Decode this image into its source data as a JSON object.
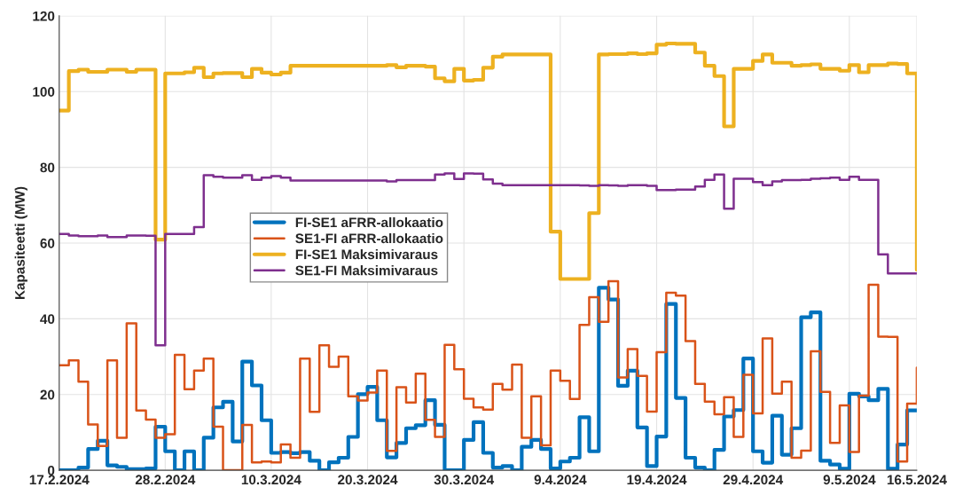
{
  "chart_data": {
    "type": "step",
    "ylabel": "Kapasiteetti (MW)",
    "x": [
      "2024-02-17",
      "2024-02-18",
      "2024-02-19",
      "2024-02-20",
      "2024-02-21",
      "2024-02-22",
      "2024-02-23",
      "2024-02-24",
      "2024-02-25",
      "2024-02-26",
      "2024-02-27",
      "2024-02-28",
      "2024-02-29",
      "2024-03-01",
      "2024-03-02",
      "2024-03-03",
      "2024-03-04",
      "2024-03-05",
      "2024-03-06",
      "2024-03-07",
      "2024-03-08",
      "2024-03-09",
      "2024-03-10",
      "2024-03-11",
      "2024-03-12",
      "2024-03-13",
      "2024-03-14",
      "2024-03-15",
      "2024-03-16",
      "2024-03-17",
      "2024-03-18",
      "2024-03-19",
      "2024-03-20",
      "2024-03-21",
      "2024-03-22",
      "2024-03-23",
      "2024-03-24",
      "2024-03-25",
      "2024-03-26",
      "2024-03-27",
      "2024-03-28",
      "2024-03-29",
      "2024-03-30",
      "2024-03-31",
      "2024-04-01",
      "2024-04-02",
      "2024-04-03",
      "2024-04-04",
      "2024-04-05",
      "2024-04-06",
      "2024-04-07",
      "2024-04-08",
      "2024-04-09",
      "2024-04-10",
      "2024-04-11",
      "2024-04-12",
      "2024-04-13",
      "2024-04-14",
      "2024-04-15",
      "2024-04-16",
      "2024-04-17",
      "2024-04-18",
      "2024-04-19",
      "2024-04-20",
      "2024-04-21",
      "2024-04-22",
      "2024-04-23",
      "2024-04-24",
      "2024-04-25",
      "2024-04-26",
      "2024-04-27",
      "2024-04-28",
      "2024-04-29",
      "2024-04-30",
      "2024-05-01",
      "2024-05-02",
      "2024-05-03",
      "2024-05-04",
      "2024-05-05",
      "2024-05-06",
      "2024-05-07",
      "2024-05-08",
      "2024-05-09",
      "2024-05-10",
      "2024-05-11",
      "2024-05-12",
      "2024-05-13",
      "2024-05-14",
      "2024-05-15",
      "2024-05-16"
    ],
    "series": [
      {
        "name": "FI-SE1 aFRR-allokaatio",
        "color": "#0072bd",
        "values": [
          0,
          0,
          0.7,
          5.6,
          7.8,
          1.3,
          0.9,
          0.3,
          0.3,
          0.5,
          11.5,
          5,
          0,
          5,
          0,
          8.6,
          16.6,
          18.1,
          7.6,
          28.7,
          22.4,
          13.2,
          4.6,
          4.8,
          4.5,
          4.8,
          2.5,
          0,
          2.1,
          3.3,
          8.8,
          20.1,
          22,
          13.2,
          3.4,
          7.2,
          11.1,
          11.9,
          18.5,
          12,
          0,
          0,
          8,
          12.7,
          4.6,
          0.7,
          1.1,
          0,
          6.2,
          8,
          5.6,
          0.5,
          2.3,
          3.3,
          14,
          5,
          48.2,
          45.1,
          22.3,
          26.3,
          11.3,
          1.1,
          8.9,
          43.9,
          19.1,
          3.3,
          0.7,
          0,
          5.4,
          14.2,
          15.9,
          29.5,
          5,
          2,
          14.4,
          4.1,
          11.1,
          40.4,
          41.7,
          2.5,
          1.5,
          0.4,
          20.2,
          19.5,
          18.5,
          21.5,
          0.4,
          6.8,
          15.8,
          15.8
        ]
      },
      {
        "name": "SE1-FI aFRR-allokaatio",
        "color": "#d95319",
        "values": [
          27.7,
          29,
          23.4,
          12.1,
          6.4,
          29,
          8.6,
          38.8,
          15.8,
          13.4,
          8.6,
          9.5,
          30.5,
          21.4,
          26.3,
          29.5,
          11.5,
          0,
          0,
          12,
          2.1,
          2.3,
          2.1,
          6.8,
          3.3,
          29.5,
          15.4,
          33,
          27.3,
          30,
          19.5,
          18.4,
          20.5,
          26.3,
          5.1,
          21.9,
          17.9,
          25.5,
          13.3,
          8.8,
          33.1,
          26.7,
          18.9,
          16.6,
          16,
          22.8,
          21.3,
          27.9,
          8.6,
          19.5,
          6.6,
          26.3,
          23.6,
          18.8,
          38.4,
          45.7,
          39.2,
          49.9,
          24.5,
          32,
          24.9,
          15.5,
          31.2,
          46.9,
          46.1,
          34.1,
          22.8,
          18.1,
          14.8,
          19.3,
          8.8,
          25.2,
          15,
          34.8,
          20.2,
          23.4,
          3.3,
          5.2,
          31.4,
          20.7,
          7.2,
          17.1,
          4.8,
          19.7,
          49,
          35.3,
          35.2,
          2.3,
          17.6,
          27.1
        ]
      },
      {
        "name": "FI-SE1 Maksimivaraus",
        "color": "#edb120",
        "values": [
          95,
          105.4,
          105.8,
          105.2,
          105.2,
          105.8,
          105.8,
          105.2,
          105.8,
          105.8,
          60.9,
          104.8,
          104.8,
          105.1,
          106.3,
          103.8,
          104.8,
          104.9,
          104.9,
          103.8,
          106,
          105,
          104.5,
          105,
          106.8,
          106.8,
          106.8,
          106.8,
          106.8,
          106.8,
          106.8,
          106.8,
          106.8,
          106.8,
          107,
          106.4,
          106.8,
          106.8,
          106.6,
          103.5,
          102.7,
          106,
          102.9,
          103.1,
          106.3,
          109.2,
          109.8,
          109.8,
          109.8,
          109.8,
          109.8,
          63,
          50.5,
          50.5,
          50.5,
          67.9,
          109.8,
          109.9,
          109.9,
          110.1,
          109.9,
          110.1,
          112.4,
          112.7,
          112.6,
          112.6,
          110.3,
          106.8,
          104.1,
          90.8,
          106,
          106,
          108.1,
          109.8,
          107.6,
          107.6,
          106.8,
          107,
          107.2,
          106,
          106,
          105.5,
          107,
          105.1,
          107,
          107,
          107.4,
          107.3,
          104.8,
          52.9
        ]
      },
      {
        "name": "SE1-FI Maksimivaraus",
        "color": "#7e2f8e",
        "values": [
          62.4,
          62,
          61.8,
          61.8,
          62,
          61.6,
          61.6,
          62,
          62,
          61.9,
          33,
          62.4,
          62.4,
          62.4,
          64.2,
          77.9,
          77.5,
          77.3,
          77.3,
          77.9,
          76.7,
          77.3,
          77.7,
          77.3,
          76.5,
          76.5,
          76.5,
          76.5,
          76.5,
          76.5,
          76.5,
          76.5,
          76.5,
          76.5,
          76.3,
          76.6,
          76.6,
          76.6,
          76.6,
          78.1,
          78.4,
          76.9,
          78.4,
          78.3,
          76.8,
          75.7,
          75.3,
          75.3,
          75.3,
          75.3,
          75.3,
          75.3,
          75.3,
          75.3,
          75.2,
          75.1,
          75.3,
          75.2,
          75.1,
          75.3,
          75.3,
          75.1,
          74,
          74,
          74.1,
          74.1,
          74.9,
          76.7,
          78.1,
          69.1,
          77,
          77,
          76.1,
          75.3,
          76.3,
          76.6,
          76.6,
          76.7,
          77,
          77.1,
          77.3,
          76.7,
          77.5,
          76.7,
          76.7,
          57,
          52,
          52,
          52,
          52
        ]
      }
    ],
    "xlim": [
      "2024-02-17",
      "2024-05-16"
    ],
    "xticks": [
      {
        "value": "2024-02-17",
        "label": "17.2.2024"
      },
      {
        "value": "2024-02-28",
        "label": "28.2.2024"
      },
      {
        "value": "2024-03-10",
        "label": "10.3.2024"
      },
      {
        "value": "2024-03-20",
        "label": "20.3.2024"
      },
      {
        "value": "2024-03-30",
        "label": "30.3.2024"
      },
      {
        "value": "2024-04-09",
        "label": "9.4.2024"
      },
      {
        "value": "2024-04-19",
        "label": "19.4.2024"
      },
      {
        "value": "2024-04-29",
        "label": "29.4.2024"
      },
      {
        "value": "2024-05-09",
        "label": "9.5.2024"
      },
      {
        "value": "2024-05-16",
        "label": "16.5.2024"
      }
    ],
    "ylim": [
      0,
      120
    ],
    "yticks": [
      0,
      20,
      40,
      60,
      80,
      100,
      120
    ],
    "grid": true,
    "legend": "center left"
  }
}
